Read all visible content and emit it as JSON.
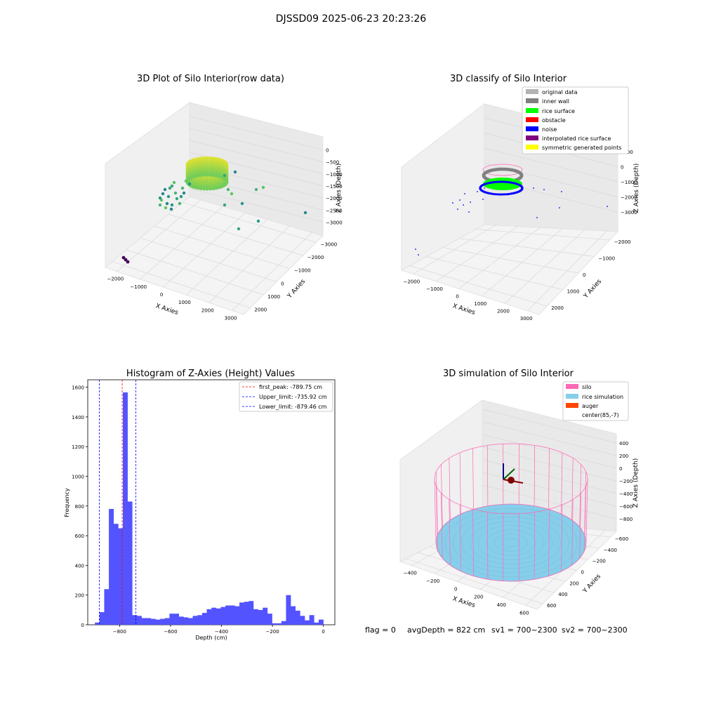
{
  "suptitle": "DJSSD09 2025-06-23 20:23:26",
  "footer": {
    "flag": "flag = 0",
    "avg_depth": "avgDepth = 822 cm",
    "sv1": "sv1 = 700~2300",
    "sv2": "sv2 = 700~2300"
  },
  "colors": {
    "original_data": "#b3b3b3",
    "inner_wall": "#808080",
    "rice_surface": "#00ff00",
    "obstacle": "#ff0000",
    "noise": "#0000ff",
    "interpolated_rice_surface": "#800080",
    "symmetric_generated_points": "#ffff00",
    "silo": "#ff69b4",
    "rice_simulation": "#87ceeb",
    "auger": "#ff4500",
    "hist_bar": "#5353ff",
    "peak_line": "#ff0000",
    "limit_line": "#0000ff"
  },
  "chart_data": [
    {
      "type": "scatter",
      "subtype": "3d",
      "title": "3D Plot of Silo Interior(row data)",
      "xlabel": "X Axies",
      "ylabel": "Y Axies",
      "zlabel": "Z Axies (Depth)",
      "xticks": [
        "−2000",
        "−1000",
        "0",
        "1000",
        "2000",
        "3000"
      ],
      "yticks": [
        "−3000",
        "−2000",
        "−1000",
        "0",
        "1000",
        "2000"
      ],
      "zticks": [
        "0",
        "−500",
        "−1000",
        "−1500",
        "−2000",
        "−2500",
        "−3000"
      ],
      "colormap": "viridis",
      "grid": true
    },
    {
      "type": "scatter",
      "subtype": "3d",
      "title": "3D classify of Silo Interior",
      "xlabel": "X Axies",
      "ylabel": "Y Axies",
      "zlabel": "Z Axies (Depth)",
      "xticks": [
        "−2000",
        "−1000",
        "0",
        "1000",
        "2000",
        "3000"
      ],
      "yticks": [
        "−2000",
        "−1000",
        "0",
        "1000",
        "2000"
      ],
      "zticks": [
        "1000",
        "0",
        "−1000",
        "−2000",
        "−3000"
      ],
      "legend": [
        "original data",
        "inner wall",
        "rice surface",
        "obstacle",
        "noise",
        "interpolated rice surface",
        "symmetric generated points"
      ],
      "legend_position": "top-right",
      "grid": true
    },
    {
      "type": "bar",
      "subtype": "histogram",
      "title": "Histogram of Z-Axies (Height) Values",
      "xlabel": "Depth (cm)",
      "ylabel": "Frequency",
      "xlim": [
        -925,
        45
      ],
      "ylim": [
        0,
        1650
      ],
      "xticks": [
        -800,
        -600,
        -400,
        -200,
        0
      ],
      "xtick_labels": [
        "−800",
        "−600",
        "−400",
        "−200",
        "0"
      ],
      "yticks": [
        0,
        200,
        400,
        600,
        800,
        1000,
        1200,
        1400,
        1600
      ],
      "bin_width": 18.3,
      "bin_starts": [
        -897.0,
        -878.7,
        -860.4,
        -842.1,
        -823.8,
        -805.5,
        -787.2,
        -768.9,
        -750.6,
        -732.3,
        -714.0,
        -695.7,
        -677.4,
        -659.1,
        -640.8,
        -622.5,
        -604.2,
        -585.9,
        -567.6,
        -549.3,
        -531.0,
        -512.7,
        -494.4,
        -476.1,
        -457.8,
        -439.5,
        -421.2,
        -402.9,
        -384.6,
        -366.3,
        -348.0,
        -329.7,
        -311.4,
        -293.1,
        -274.8,
        -256.5,
        -238.2,
        -219.9,
        -201.6,
        -183.3,
        -165.0,
        -146.7,
        -128.4,
        -110.1,
        -91.8,
        -73.5,
        -55.2,
        -36.9,
        -18.6
      ],
      "values": [
        15,
        85,
        240,
        780,
        680,
        650,
        1565,
        830,
        65,
        60,
        45,
        45,
        40,
        35,
        40,
        45,
        75,
        75,
        55,
        50,
        45,
        60,
        65,
        80,
        105,
        115,
        110,
        120,
        130,
        130,
        125,
        150,
        155,
        160,
        105,
        100,
        115,
        75,
        10,
        10,
        25,
        200,
        125,
        95,
        60,
        30,
        65,
        15,
        35
      ],
      "vlines": [
        {
          "x": -789.75,
          "label": "first_peak: -789.75 cm",
          "color": "#ff0000"
        },
        {
          "x": -735.92,
          "label": "Upper_limit: -735.92 cm",
          "color": "#0000ff"
        },
        {
          "x": -879.46,
          "label": "Lower_limit: -879.46 cm",
          "color": "#0000ff"
        }
      ],
      "legend_position": "top-right",
      "grid": false
    },
    {
      "type": "scatter",
      "subtype": "3d-simulation",
      "title": "3D simulation of Silo Interior",
      "xlabel": "X Axies",
      "ylabel": "Y Axies",
      "zlabel": "Z Axies (Depth)",
      "xticks": [
        "−400",
        "−200",
        "0",
        "200",
        "400",
        "600"
      ],
      "yticks": [
        "−600",
        "−400",
        "−200",
        "0",
        "200",
        "400",
        "600"
      ],
      "zticks": [
        "400",
        "200",
        "0",
        "−200",
        "−400",
        "−600",
        "−800"
      ],
      "legend": [
        "silo",
        "rice simulation",
        "auger",
        "center(85,-7)"
      ],
      "legend_position": "top-right",
      "grid": true
    }
  ]
}
